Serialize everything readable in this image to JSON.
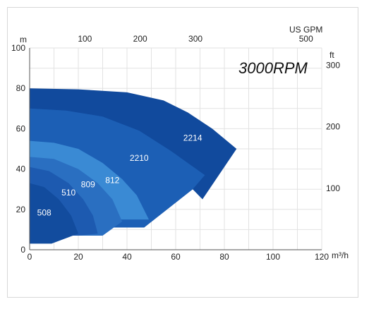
{
  "chart_data": {
    "type": "area",
    "title": "3000RPM",
    "xlabel": "m³/h",
    "ylabel": "m",
    "secondary_x_label": "US GPM",
    "secondary_y_label": "ft",
    "xlim": [
      0,
      120
    ],
    "ylim": [
      0,
      100
    ],
    "x_ticks": [
      "0",
      "20",
      "40",
      "60",
      "80",
      "100",
      "120"
    ],
    "y_ticks": [
      "0",
      "20",
      "40",
      "60",
      "80",
      "100"
    ],
    "gpm_ticks": [
      {
        "label": "100",
        "gpm": 100
      },
      {
        "label": "200",
        "gpm": 200
      },
      {
        "label": "300",
        "gpm": 300
      },
      {
        "label": "500",
        "gpm": 500
      }
    ],
    "ft_ticks": [
      {
        "label": "300",
        "ft": 300
      },
      {
        "label": "200",
        "ft": 200
      },
      {
        "label": "100",
        "ft": 100
      }
    ],
    "grid": true,
    "series": [
      {
        "name": "2214",
        "color": "#114a9d",
        "label_at": [
          67,
          54
        ],
        "points": [
          [
            0,
            80
          ],
          [
            20,
            79.5
          ],
          [
            40,
            78
          ],
          [
            55,
            74
          ],
          [
            65,
            68
          ],
          [
            75,
            60
          ],
          [
            85,
            50
          ],
          [
            71,
            25
          ],
          [
            67,
            30
          ],
          [
            47,
            11
          ],
          [
            0,
            11
          ]
        ]
      },
      {
        "name": "2210",
        "color": "#1c5fb5",
        "label_at": [
          45,
          44
        ],
        "points": [
          [
            0,
            70
          ],
          [
            15,
            69
          ],
          [
            30,
            66
          ],
          [
            45,
            59
          ],
          [
            58,
            49
          ],
          [
            72,
            37
          ],
          [
            67,
            30
          ],
          [
            47,
            11
          ],
          [
            0,
            11
          ]
        ]
      },
      {
        "name": "812",
        "color": "#3a8ad4",
        "label_at": [
          34,
          33
        ],
        "points": [
          [
            0,
            54
          ],
          [
            10,
            53
          ],
          [
            20,
            50
          ],
          [
            30,
            43
          ],
          [
            38,
            35
          ],
          [
            44,
            27
          ],
          [
            49,
            15
          ],
          [
            0,
            15
          ]
        ]
      },
      {
        "name": "809",
        "color": "#2a6fc1",
        "label_at": [
          24,
          31
        ],
        "points": [
          [
            0,
            46
          ],
          [
            10,
            45
          ],
          [
            20,
            40
          ],
          [
            28,
            33
          ],
          [
            34,
            25
          ],
          [
            38,
            14
          ],
          [
            30,
            7
          ],
          [
            0,
            7
          ]
        ]
      },
      {
        "name": "510",
        "color": "#1d5ab0",
        "label_at": [
          16,
          27
        ],
        "points": [
          [
            0,
            41
          ],
          [
            8,
            39
          ],
          [
            16,
            33
          ],
          [
            22,
            25
          ],
          [
            26,
            17
          ],
          [
            28,
            8
          ],
          [
            20,
            7
          ],
          [
            0,
            7
          ]
        ]
      },
      {
        "name": "508",
        "color": "#124c9e",
        "label_at": [
          6,
          17
        ],
        "points": [
          [
            0,
            33
          ],
          [
            6,
            31
          ],
          [
            12,
            25
          ],
          [
            17,
            17
          ],
          [
            20,
            8
          ],
          [
            9,
            3
          ],
          [
            0,
            3
          ]
        ]
      }
    ]
  }
}
